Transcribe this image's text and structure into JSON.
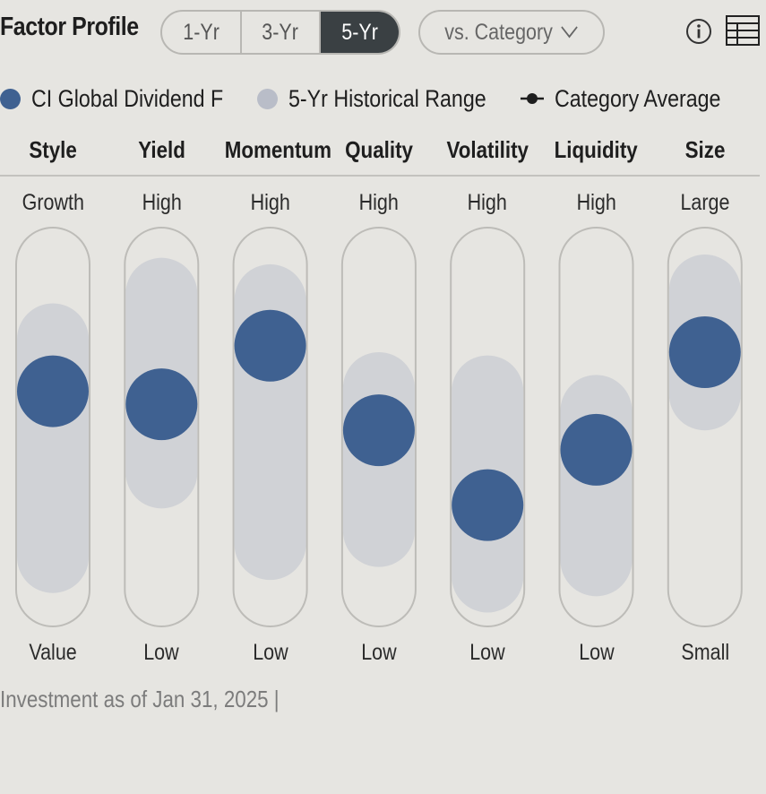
{
  "header": {
    "title": "Factor Profile",
    "period_tabs": [
      {
        "label": "1-Yr",
        "active": false
      },
      {
        "label": "3-Yr",
        "active": false
      },
      {
        "label": "5-Yr",
        "active": true
      }
    ],
    "compare_dropdown": {
      "label": "vs. Category",
      "icon": "chevron-down-icon"
    },
    "tools": [
      {
        "icon": "info-icon"
      },
      {
        "icon": "table-view-icon"
      }
    ]
  },
  "legend": {
    "investment": "CI Global Dividend F",
    "range": "5-Yr Historical Range",
    "category": "Category Average"
  },
  "colors": {
    "background": "#e6e5e1",
    "investment_dot": "#3f6191",
    "range_fill": "#d0d2d6",
    "track_border": "#bdbcb8",
    "active_tab": "#3a4043"
  },
  "chart_data": {
    "type": "factor-profile",
    "scale": [
      0,
      100
    ],
    "factors": [
      {
        "name": "Style",
        "high_label": "Growth",
        "low_label": "Value",
        "investment": 61,
        "range": [
          10,
          77
        ]
      },
      {
        "name": "Yield",
        "high_label": "High",
        "low_label": "Low",
        "investment": 57,
        "range": [
          36,
          91
        ]
      },
      {
        "name": "Momentum",
        "high_label": "High",
        "low_label": "Low",
        "investment": 75,
        "range": [
          14,
          89
        ]
      },
      {
        "name": "Quality",
        "high_label": "High",
        "low_label": "Low",
        "investment": 49,
        "range": [
          18,
          62
        ]
      },
      {
        "name": "Volatility",
        "high_label": "High",
        "low_label": "Low",
        "investment": 26,
        "range": [
          4,
          61
        ]
      },
      {
        "name": "Liquidity",
        "high_label": "High",
        "low_label": "Low",
        "investment": 43,
        "range": [
          9,
          55
        ]
      },
      {
        "name": "Size",
        "high_label": "Large",
        "low_label": "Small",
        "investment": 73,
        "range": [
          60,
          92
        ]
      }
    ]
  },
  "footer": {
    "as_of": "Investment as of Jan 31, 2025 |"
  }
}
